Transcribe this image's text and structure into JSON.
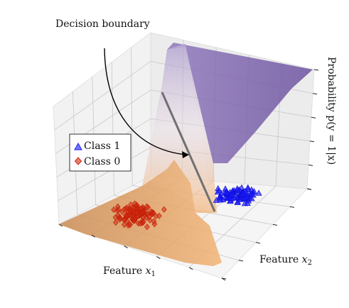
{
  "chart_data": {
    "type": "surface3d+scatter",
    "annotation": "Decision boundary",
    "xlabel_text": "Feature ",
    "xlabel_var": "x",
    "xlabel_sub": "1",
    "ylabel_text": "Feature ",
    "ylabel_var": "x",
    "ylabel_sub": "2",
    "zlabel": "Probability p(y = 1|x)",
    "legend": {
      "placement": "left",
      "entries": [
        {
          "label": "Class 1",
          "marker": "triangle",
          "color": "#1a1aff"
        },
        {
          "label": "Class 0",
          "marker": "diamond",
          "color": "#d42a10"
        }
      ]
    },
    "surface_colors": {
      "low": "#e8a060",
      "high": "#7b5fa8"
    },
    "grid": true,
    "zlim": [
      0,
      1
    ]
  }
}
